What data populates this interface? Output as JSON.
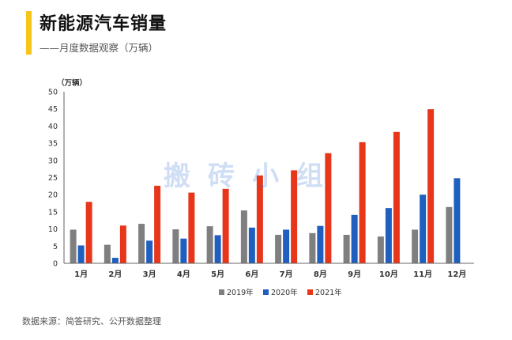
{
  "header": {
    "title": "新能源汽车销量",
    "subtitle": "——月度数据观察（万辆）"
  },
  "footer": {
    "source": "数据来源：简答研究、公开数据整理"
  },
  "watermark": "搬砖小组",
  "colors": {
    "accent": "#f5c51c",
    "s2019": "#7f7f7f",
    "s2020": "#1f5fbf",
    "s2021": "#e8361b"
  },
  "chart_data": {
    "type": "bar",
    "title": "新能源汽车销量",
    "unit_label": "（万辆）",
    "categories": [
      "1月",
      "2月",
      "3月",
      "4月",
      "5月",
      "6月",
      "7月",
      "8月",
      "9月",
      "10月",
      "11月",
      "12月"
    ],
    "series": [
      {
        "name": "2019年",
        "values": [
          9.8,
          5.4,
          11.5,
          9.9,
          10.8,
          15.4,
          8.3,
          8.8,
          8.3,
          7.8,
          9.8,
          16.4
        ]
      },
      {
        "name": "2020年",
        "values": [
          5.2,
          1.6,
          6.6,
          7.2,
          8.2,
          10.4,
          9.8,
          10.9,
          14.1,
          16.1,
          20.0,
          24.8
        ]
      },
      {
        "name": "2021年",
        "values": [
          17.9,
          11.0,
          22.6,
          20.6,
          21.7,
          25.6,
          27.1,
          32.1,
          35.3,
          38.3,
          44.9,
          null
        ]
      }
    ],
    "ylim": [
      0,
      50
    ],
    "yticks": [
      0,
      5,
      10,
      15,
      20,
      25,
      30,
      35,
      40,
      45,
      50
    ],
    "legend_position": "bottom"
  }
}
